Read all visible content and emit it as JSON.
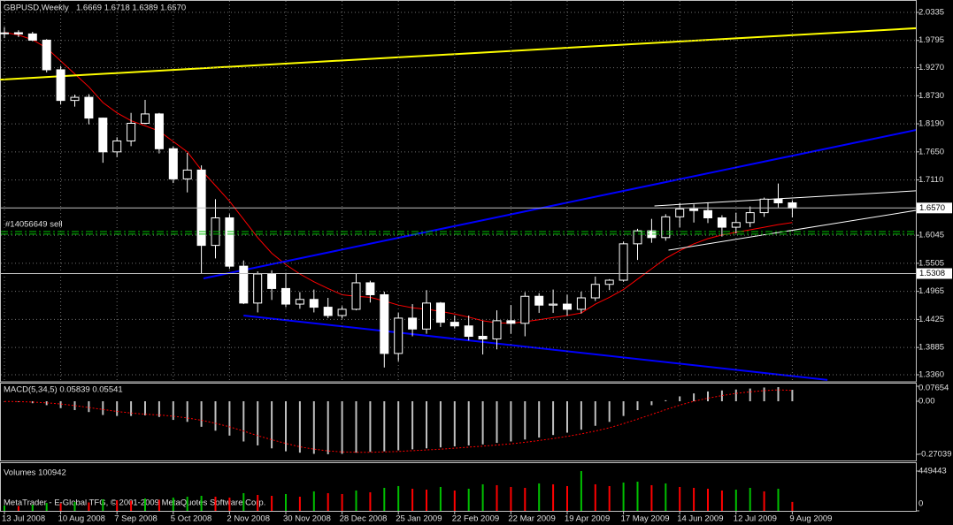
{
  "chart_data": [
    {
      "type": "candlestick",
      "title": "GBPUSD,Weekly",
      "subtitle": "1.6669 1.6718 1.6389 1.6570",
      "categories": [
        "13 Jul 2008",
        null,
        null,
        null,
        "10 Aug 2008",
        null,
        null,
        null,
        "7 Sep 2008",
        null,
        null,
        null,
        "5 Oct 2008",
        null,
        null,
        null,
        "2 Nov 2008",
        null,
        null,
        null,
        "30 Nov 2008",
        null,
        null,
        null,
        "28 Dec 2008",
        null,
        null,
        null,
        "25 Jan 2009",
        null,
        null,
        null,
        "22 Feb 2009",
        null,
        null,
        null,
        "22 Mar 2009",
        null,
        null,
        null,
        "19 Apr 2009",
        null,
        null,
        null,
        "17 May 2009",
        null,
        null,
        null,
        "14 Jun 2009",
        null,
        null,
        null,
        "12 Jul 2009",
        null,
        null,
        null,
        "9 Aug 2009"
      ],
      "open": [
        1.993,
        1.9944,
        1.992,
        1.98,
        1.923,
        1.864,
        1.87,
        1.83,
        1.765,
        1.786,
        1.82,
        1.838,
        1.771,
        1.713,
        1.73,
        1.585,
        1.638,
        1.545,
        1.474,
        1.53,
        1.502,
        1.472,
        1.481,
        1.466,
        1.45,
        1.462,
        1.513,
        1.49,
        1.377,
        1.445,
        1.424,
        1.474,
        1.437,
        1.43,
        1.41,
        1.405,
        1.44,
        1.435,
        1.487,
        1.47,
        1.472,
        1.462,
        1.484,
        1.51,
        1.518,
        1.588,
        1.613,
        1.6,
        1.64,
        1.655,
        1.652,
        1.638,
        1.62,
        1.629,
        1.648,
        1.674,
        1.6669
      ],
      "high": [
        2.005,
        1.999,
        1.996,
        1.982,
        1.93,
        1.875,
        1.876,
        1.831,
        1.793,
        1.84,
        1.865,
        1.84,
        1.775,
        1.763,
        1.739,
        1.674,
        1.645,
        1.556,
        1.535,
        1.537,
        1.532,
        1.495,
        1.5,
        1.484,
        1.468,
        1.53,
        1.517,
        1.496,
        1.455,
        1.472,
        1.499,
        1.476,
        1.45,
        1.45,
        1.44,
        1.46,
        1.47,
        1.495,
        1.493,
        1.5,
        1.49,
        1.496,
        1.525,
        1.52,
        1.592,
        1.617,
        1.636,
        1.645,
        1.666,
        1.664,
        1.668,
        1.643,
        1.648,
        1.66,
        1.677,
        1.704,
        1.6718
      ],
      "low": [
        1.984,
        1.986,
        1.978,
        1.918,
        1.856,
        1.852,
        1.818,
        1.744,
        1.755,
        1.776,
        1.818,
        1.762,
        1.705,
        1.687,
        1.53,
        1.56,
        1.54,
        1.472,
        1.456,
        1.48,
        1.466,
        1.463,
        1.456,
        1.445,
        1.444,
        1.46,
        1.475,
        1.35,
        1.362,
        1.41,
        1.415,
        1.428,
        1.425,
        1.402,
        1.375,
        1.385,
        1.415,
        1.41,
        1.455,
        1.455,
        1.45,
        1.454,
        1.478,
        1.499,
        1.515,
        1.557,
        1.59,
        1.594,
        1.62,
        1.629,
        1.628,
        1.602,
        1.608,
        1.62,
        1.64,
        1.658,
        1.6389
      ],
      "close": [
        1.994,
        1.992,
        1.98,
        1.923,
        1.864,
        1.87,
        1.83,
        1.765,
        1.786,
        1.82,
        1.838,
        1.771,
        1.713,
        1.73,
        1.585,
        1.638,
        1.545,
        1.474,
        1.53,
        1.502,
        1.472,
        1.481,
        1.466,
        1.45,
        1.462,
        1.513,
        1.49,
        1.377,
        1.445,
        1.424,
        1.474,
        1.437,
        1.43,
        1.41,
        1.405,
        1.44,
        1.435,
        1.487,
        1.47,
        1.472,
        1.462,
        1.484,
        1.51,
        1.518,
        1.588,
        1.613,
        1.6,
        1.64,
        1.655,
        1.652,
        1.638,
        1.62,
        1.629,
        1.648,
        1.674,
        1.6669,
        1.657
      ],
      "bull_color": "#000000",
      "bear_color": "#ffffff",
      "wick_color": "#ffffff",
      "ma": {
        "color": "#ff0000",
        "values": [
          1.995,
          1.99,
          1.981,
          1.965,
          1.94,
          1.915,
          1.89,
          1.86,
          1.84,
          1.825,
          1.815,
          1.805,
          1.785,
          1.765,
          1.73,
          1.7,
          1.67,
          1.635,
          1.6,
          1.57,
          1.548,
          1.53,
          1.515,
          1.502,
          1.49,
          1.487,
          1.485,
          1.478,
          1.47,
          1.465,
          1.462,
          1.458,
          1.453,
          1.447,
          1.44,
          1.436,
          1.435,
          1.438,
          1.442,
          1.446,
          1.45,
          1.455,
          1.472,
          1.485,
          1.5,
          1.52,
          1.54,
          1.56,
          1.575,
          1.588,
          1.598,
          1.605,
          1.61,
          1.615,
          1.62,
          1.625,
          1.629
        ]
      },
      "trendlines": [
        {
          "color": "#ffff00",
          "x": [
            -0.3,
            64.8
          ],
          "values": [
            1.904,
            2.003
          ]
        },
        {
          "color": "#0000ff",
          "x": [
            14.15,
            64.8
          ],
          "values": [
            1.5214,
            1.8072
          ]
        },
        {
          "color": "#0000ff",
          "x": [
            17.0,
            58.5
          ],
          "values": [
            1.45,
            1.326
          ]
        },
        {
          "color": "#ffffff",
          "x": [
            46.2,
            64.8
          ],
          "values": [
            1.661,
            1.69
          ]
        },
        {
          "color": "#ffffff",
          "x": [
            47.2,
            64.8
          ],
          "values": [
            1.5758,
            1.6524
          ]
        }
      ],
      "price_lines": [
        {
          "value": 1.657,
          "label": "1.6570"
        },
        {
          "value": 1.5308,
          "label": "1.5308"
        }
      ],
      "order_lines": {
        "color": "#00c000",
        "lines": [
          {
            "value": 1.6117,
            "label": "#14056649 sell"
          },
          {
            "value": 1.6066
          }
        ]
      },
      "ylim": [
        1.3224,
        2.0573
      ],
      "yticks": [
        2.0335,
        1.9795,
        {
          "value": 1.927,
          "label": "1.9270"
        },
        {
          "value": 1.873,
          "label": "1.8730"
        },
        {
          "value": 1.819,
          "label": "1.8190"
        },
        {
          "value": 1.765,
          "label": "1.7650"
        },
        {
          "value": 1.711,
          "label": "1.7110"
        },
        1.6045,
        1.5505,
        1.4965,
        1.4425,
        1.3885,
        {
          "value": 1.336,
          "label": "1.3360"
        }
      ],
      "grid": true
    },
    {
      "type": "macd",
      "title": "MACD(5,34,5) 0.05839 0.05541",
      "color": "#c0c0c0",
      "values": [
        -0.002,
        -0.004,
        -0.01,
        -0.02,
        -0.035,
        -0.045,
        -0.055,
        -0.07,
        -0.075,
        -0.075,
        -0.072,
        -0.08,
        -0.095,
        -0.105,
        -0.13,
        -0.15,
        -0.175,
        -0.205,
        -0.225,
        -0.24,
        -0.255,
        -0.262,
        -0.268,
        -0.27,
        -0.268,
        -0.262,
        -0.258,
        -0.255,
        -0.25,
        -0.245,
        -0.24,
        -0.235,
        -0.23,
        -0.225,
        -0.22,
        -0.212,
        -0.205,
        -0.195,
        -0.185,
        -0.172,
        -0.16,
        -0.145,
        -0.125,
        -0.105,
        -0.075,
        -0.045,
        -0.02,
        0.005,
        0.025,
        0.04,
        0.05,
        0.055,
        0.06,
        0.065,
        0.07,
        0.072,
        0.05839
      ],
      "signal": {
        "color": "#ff0000",
        "values": [
          -0.001,
          -0.002,
          -0.004,
          -0.008,
          -0.014,
          -0.022,
          -0.032,
          -0.042,
          -0.052,
          -0.06,
          -0.066,
          -0.07,
          -0.076,
          -0.085,
          -0.097,
          -0.112,
          -0.13,
          -0.152,
          -0.175,
          -0.196,
          -0.215,
          -0.232,
          -0.244,
          -0.253,
          -0.258,
          -0.26,
          -0.26,
          -0.258,
          -0.256,
          -0.252,
          -0.248,
          -0.244,
          -0.239,
          -0.234,
          -0.229,
          -0.223,
          -0.217,
          -0.209,
          -0.2,
          -0.19,
          -0.179,
          -0.166,
          -0.152,
          -0.135,
          -0.114,
          -0.091,
          -0.067,
          -0.043,
          -0.02,
          0.0,
          0.016,
          0.029,
          0.04,
          0.048,
          0.054,
          0.058,
          0.05541
        ]
      },
      "ylim": [
        -0.3063,
        0.0901
      ],
      "yticks": [
        0.07654,
        {
          "value": 0,
          "label": "0.00"
        },
        -0.27039
      ]
    },
    {
      "type": "volume",
      "title": "Volumes 100942",
      "note": "MetaTrader - E-Global TFG, © 2001-2009 MetaQuotes Software Corp.",
      "up_color": "#00c000",
      "down_color": "#ff0000",
      "values": [
        60000,
        55000,
        70000,
        90000,
        85000,
        100000,
        95000,
        130000,
        120000,
        115000,
        140000,
        125000,
        150000,
        160000,
        170000,
        160000,
        150000,
        200000,
        180000,
        170000,
        190000,
        160000,
        220000,
        200000,
        190000,
        230000,
        210000,
        260000,
        280000,
        250000,
        240000,
        270000,
        230000,
        250000,
        300000,
        290000,
        270000,
        260000,
        310000,
        300000,
        280000,
        449443,
        300000,
        280000,
        320000,
        330000,
        290000,
        310000,
        270000,
        260000,
        250000,
        230000,
        240000,
        260000,
        220000,
        250000,
        100942
      ],
      "ylim": [
        0,
        539332
      ],
      "yticks": [
        449443,
        0
      ]
    }
  ]
}
